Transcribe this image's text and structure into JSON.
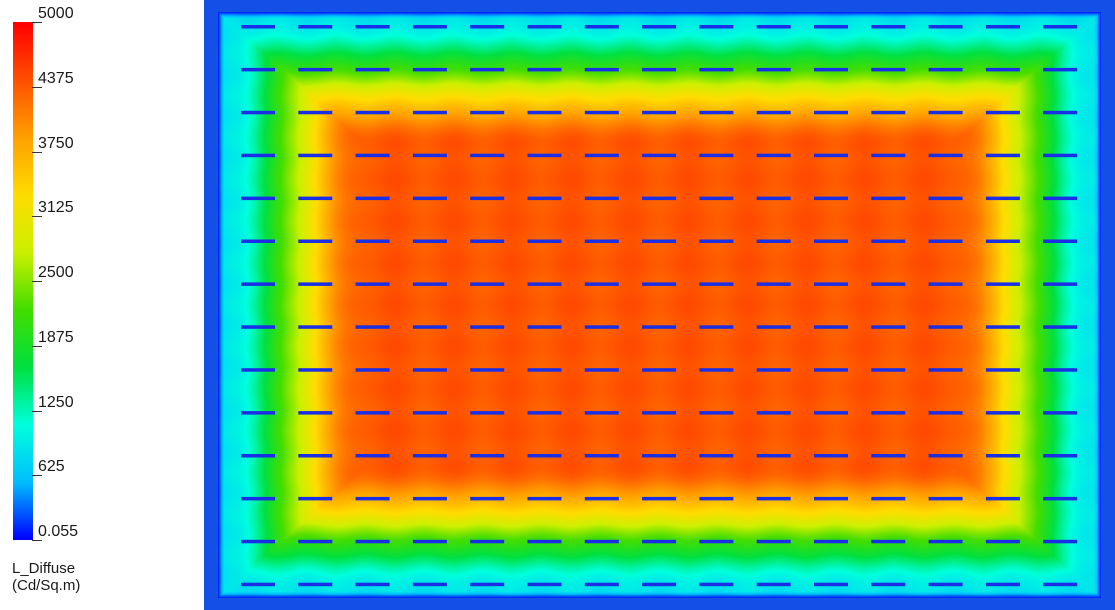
{
  "chart_data": {
    "type": "heatmap",
    "title": "",
    "colorbar": {
      "label_line1": "L_Diffuse",
      "label_line2": "(Cd/Sq.m)",
      "min": 0.055,
      "max": 5000,
      "ticks": [
        "5000",
        "4375",
        "3750",
        "3125",
        "2500",
        "1875",
        "1250",
        "625",
        "0.055"
      ],
      "tick_values": [
        5000,
        4375,
        3750,
        3125,
        2500,
        1875,
        1250,
        625,
        0.055
      ],
      "colormap": [
        "#0000ff",
        "#00bfff",
        "#00ffdd",
        "#00e040",
        "#44dd00",
        "#ccf000",
        "#ffdd00",
        "#ffa000",
        "#ff5000",
        "#ff0000"
      ]
    },
    "field": {
      "description_value_center": 4400,
      "value_edge": 900,
      "value_border": 100,
      "fixture_rows": 14,
      "fixture_cols": 15,
      "fixture_color": "#1a2ee6"
    }
  }
}
